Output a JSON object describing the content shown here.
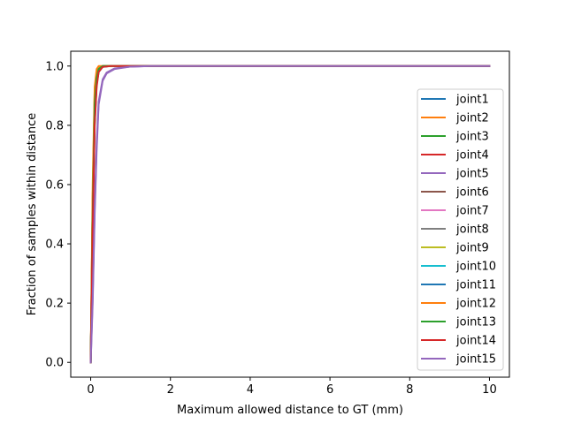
{
  "chart_data": {
    "type": "line",
    "xlabel": "Maximum allowed distance to GT (mm)",
    "ylabel": "Fraction of samples within distance",
    "xlim": [
      -0.5,
      10.5
    ],
    "ylim": [
      -0.05,
      1.05
    ],
    "xticks": [
      0,
      2,
      4,
      6,
      8,
      10
    ],
    "yticks": [
      0.0,
      0.2,
      0.4,
      0.6,
      0.8,
      1.0
    ],
    "grid": false,
    "legend_position": "right",
    "series": [
      {
        "name": "joint1",
        "color": "#1f77b4",
        "x": [
          0,
          0.05,
          0.1,
          0.15,
          0.2,
          0.3,
          0.5,
          1.0,
          10
        ],
        "y": [
          0,
          0.5,
          0.85,
          0.96,
          0.99,
          1.0,
          1.0,
          1.0,
          1.0
        ]
      },
      {
        "name": "joint2",
        "color": "#ff7f0e",
        "x": [
          0,
          0.05,
          0.1,
          0.15,
          0.2,
          0.3,
          0.5,
          1.0,
          10
        ],
        "y": [
          0,
          0.55,
          0.9,
          0.98,
          0.995,
          1.0,
          1.0,
          1.0,
          1.0
        ]
      },
      {
        "name": "joint3",
        "color": "#2ca02c",
        "x": [
          0,
          0.05,
          0.1,
          0.15,
          0.2,
          0.3,
          0.5,
          1.0,
          10
        ],
        "y": [
          0,
          0.45,
          0.8,
          0.94,
          0.98,
          1.0,
          1.0,
          1.0,
          1.0
        ]
      },
      {
        "name": "joint4",
        "color": "#d62728",
        "x": [
          0,
          0.05,
          0.1,
          0.15,
          0.2,
          0.3,
          0.5,
          1.0,
          10
        ],
        "y": [
          0,
          0.5,
          0.85,
          0.95,
          0.985,
          0.998,
          1.0,
          1.0,
          1.0
        ]
      },
      {
        "name": "joint5",
        "color": "#9467bd",
        "x": [
          0,
          0.05,
          0.1,
          0.15,
          0.2,
          0.3,
          0.4,
          0.6,
          1.0,
          1.5,
          10
        ],
        "y": [
          0,
          0.2,
          0.5,
          0.72,
          0.87,
          0.95,
          0.975,
          0.99,
          0.998,
          1.0,
          1.0
        ]
      },
      {
        "name": "joint6",
        "color": "#8c564b",
        "x": [
          0,
          0.05,
          0.1,
          0.15,
          0.2,
          0.3,
          0.5,
          1.0,
          10
        ],
        "y": [
          0,
          0.55,
          0.88,
          0.97,
          0.99,
          1.0,
          1.0,
          1.0,
          1.0
        ]
      },
      {
        "name": "joint7",
        "color": "#e377c2",
        "x": [
          0,
          0.05,
          0.1,
          0.15,
          0.2,
          0.3,
          0.5,
          1.0,
          10
        ],
        "y": [
          0,
          0.5,
          0.85,
          0.95,
          0.985,
          0.998,
          1.0,
          1.0,
          1.0
        ]
      },
      {
        "name": "joint8",
        "color": "#7f7f7f",
        "x": [
          0,
          0.05,
          0.1,
          0.15,
          0.2,
          0.3,
          0.5,
          1.0,
          10
        ],
        "y": [
          0,
          0.45,
          0.82,
          0.94,
          0.98,
          0.997,
          1.0,
          1.0,
          1.0
        ]
      },
      {
        "name": "joint9",
        "color": "#bcbd22",
        "x": [
          0,
          0.05,
          0.1,
          0.15,
          0.2,
          0.3,
          0.5,
          1.0,
          10
        ],
        "y": [
          0,
          0.55,
          0.92,
          0.98,
          0.995,
          1.0,
          1.0,
          1.0,
          1.0
        ]
      },
      {
        "name": "joint10",
        "color": "#17becf",
        "x": [
          0,
          0.05,
          0.1,
          0.15,
          0.2,
          0.3,
          0.5,
          1.0,
          10
        ],
        "y": [
          0,
          0.5,
          0.86,
          0.96,
          0.99,
          1.0,
          1.0,
          1.0,
          1.0
        ]
      },
      {
        "name": "joint11",
        "color": "#1f77b4",
        "x": [
          0,
          0.05,
          0.1,
          0.15,
          0.2,
          0.3,
          0.5,
          1.0,
          10
        ],
        "y": [
          0,
          0.48,
          0.84,
          0.95,
          0.985,
          0.998,
          1.0,
          1.0,
          1.0
        ]
      },
      {
        "name": "joint12",
        "color": "#ff7f0e",
        "x": [
          0,
          0.05,
          0.1,
          0.15,
          0.2,
          0.3,
          0.5,
          1.0,
          10
        ],
        "y": [
          0,
          0.6,
          0.93,
          0.99,
          1.0,
          1.0,
          1.0,
          1.0,
          1.0
        ]
      },
      {
        "name": "joint13",
        "color": "#2ca02c",
        "x": [
          0,
          0.05,
          0.1,
          0.15,
          0.2,
          0.3,
          0.5,
          1.0,
          10
        ],
        "y": [
          0,
          0.5,
          0.87,
          0.96,
          0.99,
          1.0,
          1.0,
          1.0,
          1.0
        ]
      },
      {
        "name": "joint14",
        "color": "#d62728",
        "x": [
          0,
          0.05,
          0.1,
          0.15,
          0.2,
          0.3,
          0.5,
          1.0,
          10
        ],
        "y": [
          0,
          0.45,
          0.8,
          0.93,
          0.98,
          0.997,
          1.0,
          1.0,
          1.0
        ]
      },
      {
        "name": "joint15",
        "color": "#9467bd",
        "x": [
          0,
          0.05,
          0.1,
          0.15,
          0.2,
          0.3,
          0.4,
          0.6,
          1.0,
          1.5,
          10
        ],
        "y": [
          0,
          0.22,
          0.52,
          0.74,
          0.88,
          0.955,
          0.978,
          0.992,
          0.998,
          1.0,
          1.0
        ]
      }
    ]
  }
}
